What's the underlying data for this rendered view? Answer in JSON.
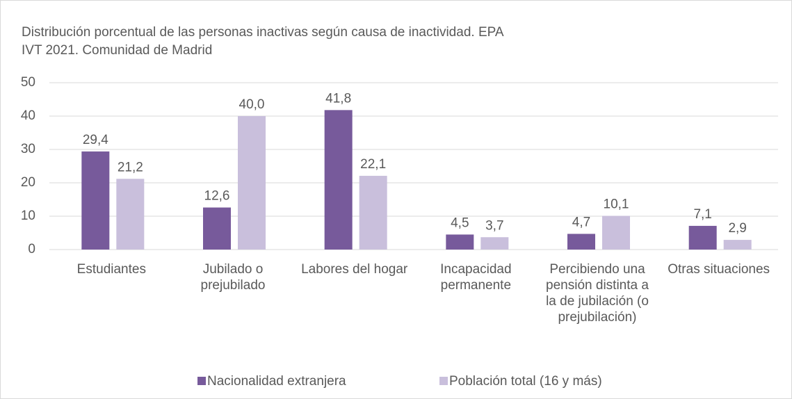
{
  "chart_data": {
    "type": "bar",
    "title": [
      "Distribución porcentual de las personas inactivas según causa de inactividad.  EPA",
      "IVT 2021. Comunidad de Madrid"
    ],
    "categories": [
      "Estudiantes",
      "Jubilado o prejubilado",
      "Labores del hogar",
      "Incapacidad permanente",
      "Percibiendo una pensión distinta a la de jubilación  (o prejubilación)",
      "Otras situaciones"
    ],
    "series": [
      {
        "name": "Nacionalidad extranjera",
        "color": "#775a9b",
        "values": [
          29.4,
          12.6,
          41.8,
          4.5,
          4.7,
          7.1
        ],
        "value_labels": [
          "29,4",
          "12,6",
          "41,8",
          "4,5",
          "4,7",
          "7,1"
        ]
      },
      {
        "name": "Población total (16 y más)",
        "color": "#c9bfdc",
        "values": [
          21.2,
          40.0,
          22.1,
          3.7,
          10.1,
          2.9
        ],
        "value_labels": [
          "21,2",
          "40,0",
          "22,1",
          "3,7",
          "10,1",
          "2,9"
        ]
      }
    ],
    "ylim": [
      0,
      50
    ],
    "yticks": [
      0,
      10,
      20,
      30,
      40,
      50
    ],
    "grid": true,
    "legend": "bottom"
  }
}
